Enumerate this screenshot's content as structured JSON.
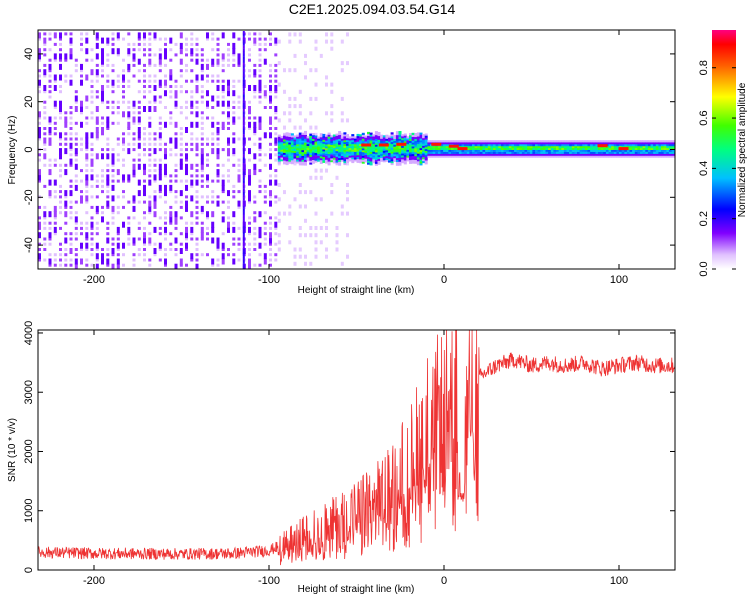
{
  "title": "C2E1.2025.094.03.54.G14",
  "chart_data": [
    {
      "type": "heatmap",
      "xlabel": "Height of straight line (km)",
      "ylabel": "Frequency (Hz)",
      "xlim": [
        -232,
        132
      ],
      "ylim": [
        -50,
        50
      ],
      "x_ticks": [
        -200,
        -100,
        0,
        100
      ],
      "y_ticks": [
        -40,
        -20,
        0,
        20,
        40
      ],
      "colorbar": {
        "label": "Normalized spectral amplitude",
        "range": [
          0,
          0.95
        ],
        "ticks": [
          0,
          0.2,
          0.4,
          0.6,
          0.8
        ],
        "colors": [
          "#ffffff",
          "#c080ff",
          "#8000ff",
          "#0000ff",
          "#00ffff",
          "#00ff00",
          "#ffff00",
          "#ff8000",
          "#ff0000",
          "#ff0060"
        ]
      },
      "regions": [
        {
          "x_range": [
            -232,
            -95
          ],
          "description_value": "broadband noise",
          "amplitude": 0.3
        },
        {
          "x_range": [
            -95,
            132
          ],
          "center_freq": 0,
          "bandwidth_hz": 8,
          "amplitude": 0.6
        }
      ],
      "grid": false
    },
    {
      "type": "line",
      "xlabel": "Height of straight line (km)",
      "ylabel": "SNR (10 * v/v)",
      "xlim": [
        -232,
        132
      ],
      "ylim": [
        0,
        4050
      ],
      "x_ticks": [
        -200,
        -100,
        0,
        100
      ],
      "y_ticks": [
        0,
        1000,
        2000,
        3000,
        4000
      ],
      "series": [
        {
          "color": "#ee3333",
          "x": [
            -232,
            -200,
            -150,
            -120,
            -100,
            -90,
            -80,
            -70,
            -60,
            -50,
            -40,
            -30,
            -20,
            -10,
            0,
            10,
            20,
            30,
            40,
            50,
            60,
            70,
            80,
            90,
            100,
            110,
            120,
            132
          ],
          "y": [
            300,
            280,
            270,
            280,
            330,
            450,
            600,
            720,
            850,
            1000,
            1150,
            1400,
            1800,
            2400,
            2700,
            2900,
            3250,
            3450,
            3550,
            3450,
            3500,
            3450,
            3500,
            3400,
            3450,
            3500,
            3450,
            3450
          ]
        }
      ],
      "grid": false
    }
  ]
}
